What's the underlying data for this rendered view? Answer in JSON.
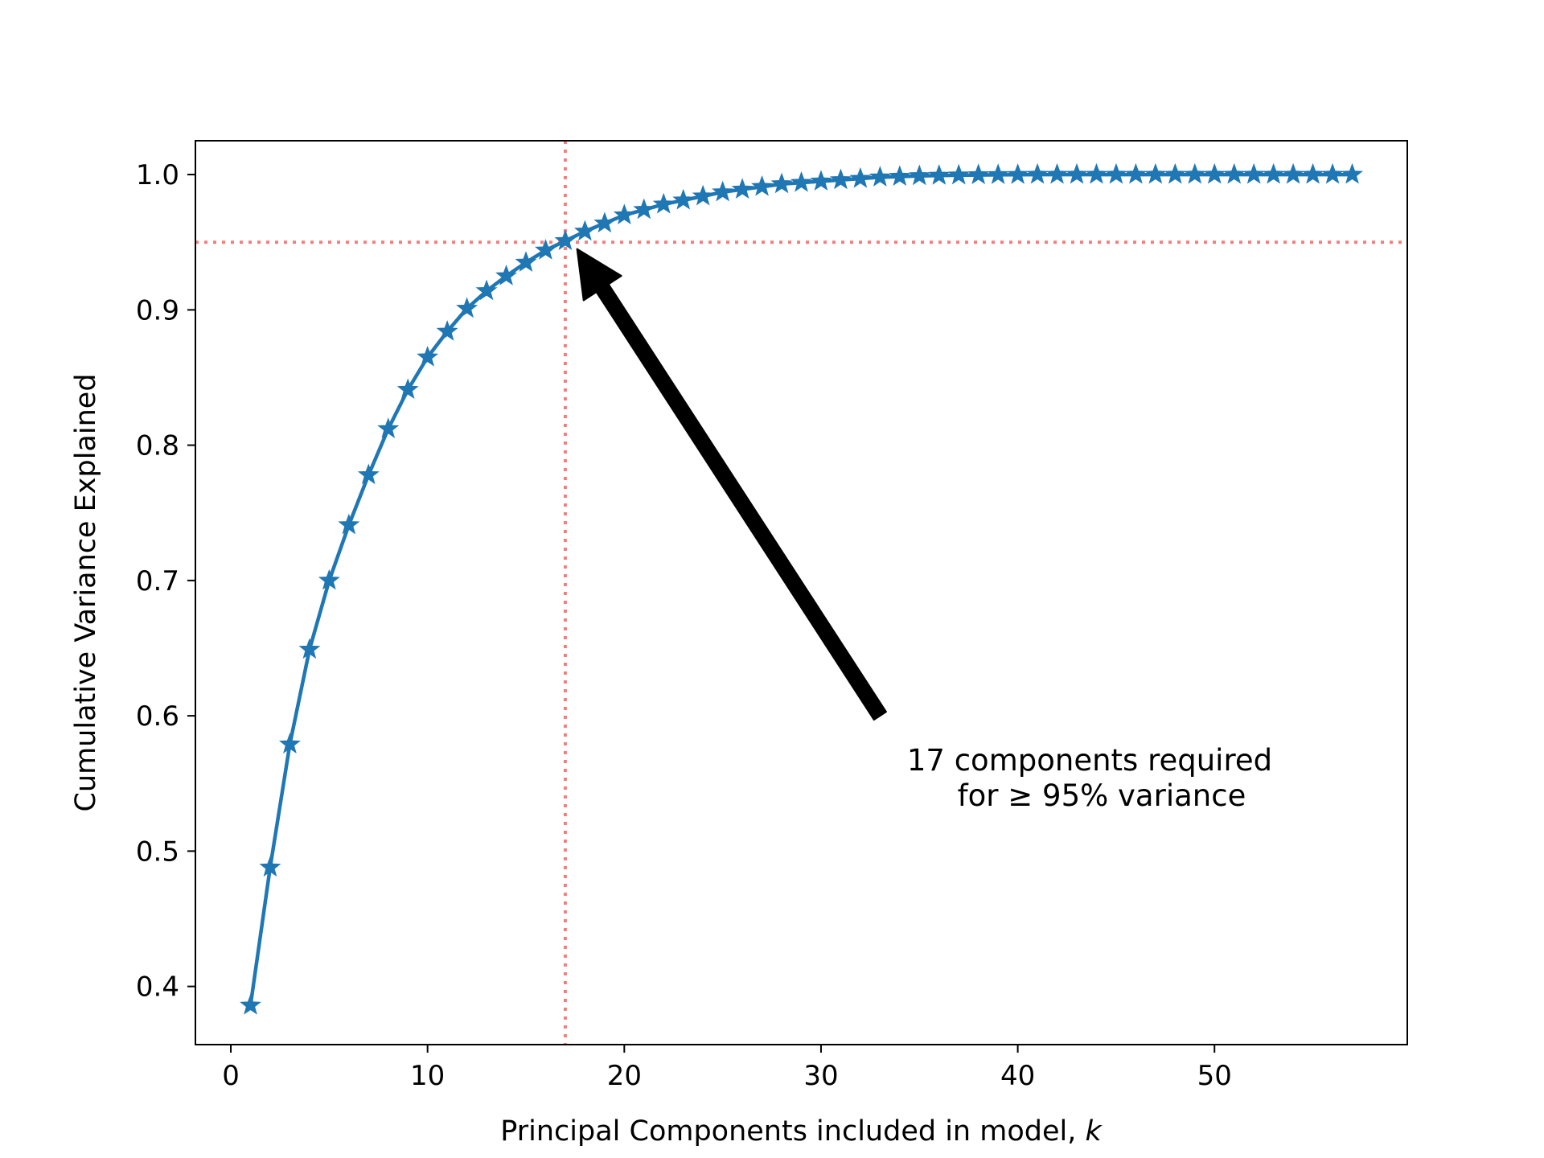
{
  "chart_data": {
    "type": "line",
    "title": "",
    "xlabel": "Principal Components included in model, ",
    "xlabel_var": "k",
    "ylabel": "Cumulative Variance Explained",
    "xlim": [
      -1.8,
      59.8
    ],
    "ylim": [
      0.357,
      1.025
    ],
    "x_ticks": [
      0,
      10,
      20,
      30,
      40,
      50
    ],
    "x_tick_labels": [
      "0",
      "10",
      "20",
      "30",
      "40",
      "50"
    ],
    "y_ticks": [
      0.4,
      0.5,
      0.6,
      0.7,
      0.8,
      0.9,
      1.0
    ],
    "y_tick_labels": [
      "0.4",
      "0.5",
      "0.6",
      "0.7",
      "0.8",
      "0.9",
      "1.0"
    ],
    "grid": false,
    "legend": false,
    "series": [
      {
        "color": "#1f77b4",
        "marker": "star",
        "x": [
          1,
          2,
          3,
          4,
          5,
          6,
          7,
          8,
          9,
          10,
          11,
          12,
          13,
          14,
          15,
          16,
          17,
          18,
          19,
          20,
          21,
          22,
          23,
          24,
          25,
          26,
          27,
          28,
          29,
          30,
          31,
          32,
          33,
          34,
          35,
          36,
          37,
          38,
          39,
          40,
          41,
          42,
          43,
          44,
          45,
          46,
          47,
          48,
          49,
          50,
          51,
          52,
          53,
          54,
          55,
          56,
          57
        ],
        "y": [
          0.386,
          0.488,
          0.579,
          0.649,
          0.7,
          0.741,
          0.778,
          0.812,
          0.841,
          0.865,
          0.884,
          0.901,
          0.914,
          0.925,
          0.935,
          0.944,
          0.951,
          0.958,
          0.964,
          0.97,
          0.974,
          0.978,
          0.981,
          0.984,
          0.987,
          0.989,
          0.991,
          0.993,
          0.994,
          0.995,
          0.996,
          0.997,
          0.998,
          0.9985,
          0.999,
          0.9993,
          0.9995,
          0.9997,
          0.9998,
          0.9999,
          1.0,
          1.0,
          1.0,
          1.0,
          1.0,
          1.0,
          1.0,
          1.0,
          1.0,
          1.0,
          1.0,
          1.0,
          1.0,
          1.0,
          1.0,
          1.0,
          1.0
        ]
      }
    ],
    "reference_lines": {
      "color": "#f08080",
      "style": "dotted",
      "vertical_x": 17,
      "horizontal_y": 0.95
    },
    "annotation": {
      "line1": "17 components required",
      "line2": "for ≥ 95% variance",
      "arrow_from": [
        33,
        0.6
      ],
      "arrow_to": [
        17.6,
        0.945
      ],
      "arrow_color": "#000000"
    }
  }
}
